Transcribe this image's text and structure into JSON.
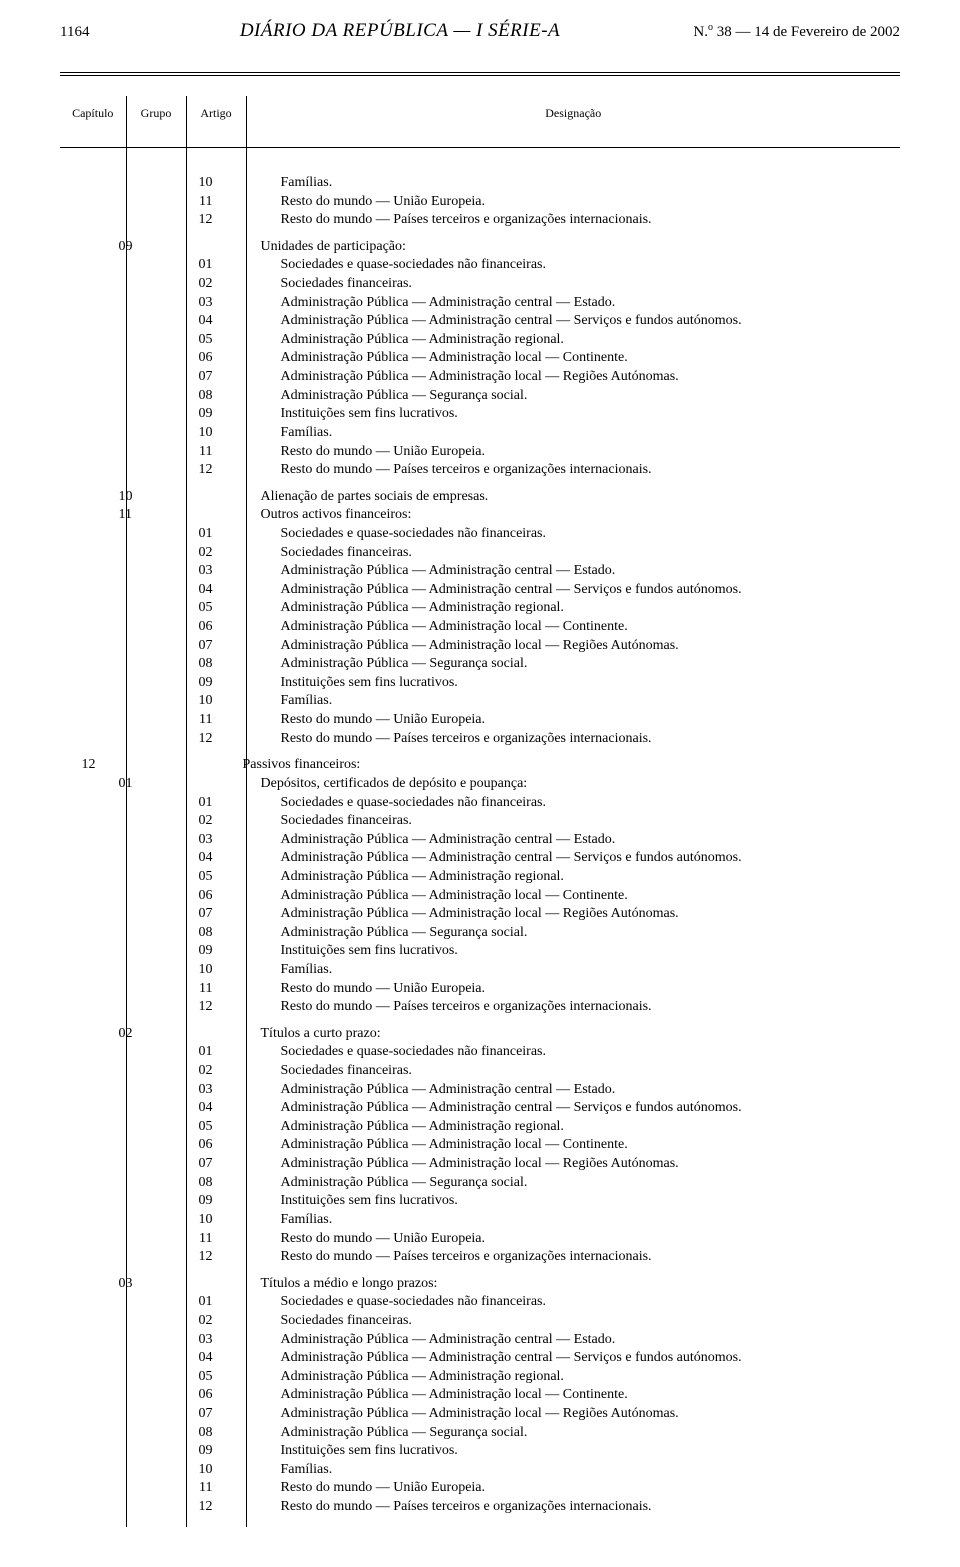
{
  "header": {
    "page_number": "1164",
    "journal_title": "DIÁRIO DA REPÚBLICA — I SÉRIE-A",
    "issue_prefix": "N.",
    "issue_sup": "o",
    "issue_rest": " 38 — 14 de Fevereiro de 2002"
  },
  "columns": {
    "capitulo": "Capítulo",
    "grupo": "Grupo",
    "artigo": "Artigo",
    "designacao": "Designação"
  },
  "labels": {
    "unidades_participacao": "Unidades de participação:",
    "alienacao": "Alienação de partes sociais de empresas.",
    "outros_activos": "Outros activos financeiros:",
    "passivos": "Passivos financeiros:",
    "depositos": "Depósitos, certificados de depósito e poupança:",
    "titulos_curto": "Títulos a curto prazo:",
    "titulos_medio": "Títulos a médio e longo prazos:"
  },
  "capitulo12": "12",
  "grupos": {
    "g09": "09",
    "g10": "10",
    "g11": "11",
    "g01b": "01",
    "g02b": "02",
    "g03b": "03"
  },
  "articles_tail": [
    {
      "code": "10",
      "label": "Famílias."
    },
    {
      "code": "11",
      "label": "Resto do mundo — União Europeia."
    },
    {
      "code": "12",
      "label": "Resto do mundo — Países terceiros e organizações internacionais."
    }
  ],
  "articles_full": [
    {
      "code": "01",
      "label": "Sociedades e quase-sociedades não financeiras."
    },
    {
      "code": "02",
      "label": "Sociedades financeiras."
    },
    {
      "code": "03",
      "label": "Administração Pública — Administração central — Estado."
    },
    {
      "code": "04",
      "label": "Administração Pública — Administração central — Serviços e fundos autónomos."
    },
    {
      "code": "05",
      "label": "Administração Pública — Administração regional."
    },
    {
      "code": "06",
      "label": "Administração Pública — Administração local — Continente."
    },
    {
      "code": "07",
      "label": "Administração Pública — Administração local — Regiões Autónomas."
    },
    {
      "code": "08",
      "label": "Administração Pública — Segurança social."
    },
    {
      "code": "09",
      "label": "Instituições sem fins lucrativos."
    },
    {
      "code": "10",
      "label": "Famílias."
    },
    {
      "code": "11",
      "label": "Resto do mundo — União Europeia."
    },
    {
      "code": "12",
      "label": "Resto do mundo — Países terceiros e organizações internacionais."
    }
  ]
}
